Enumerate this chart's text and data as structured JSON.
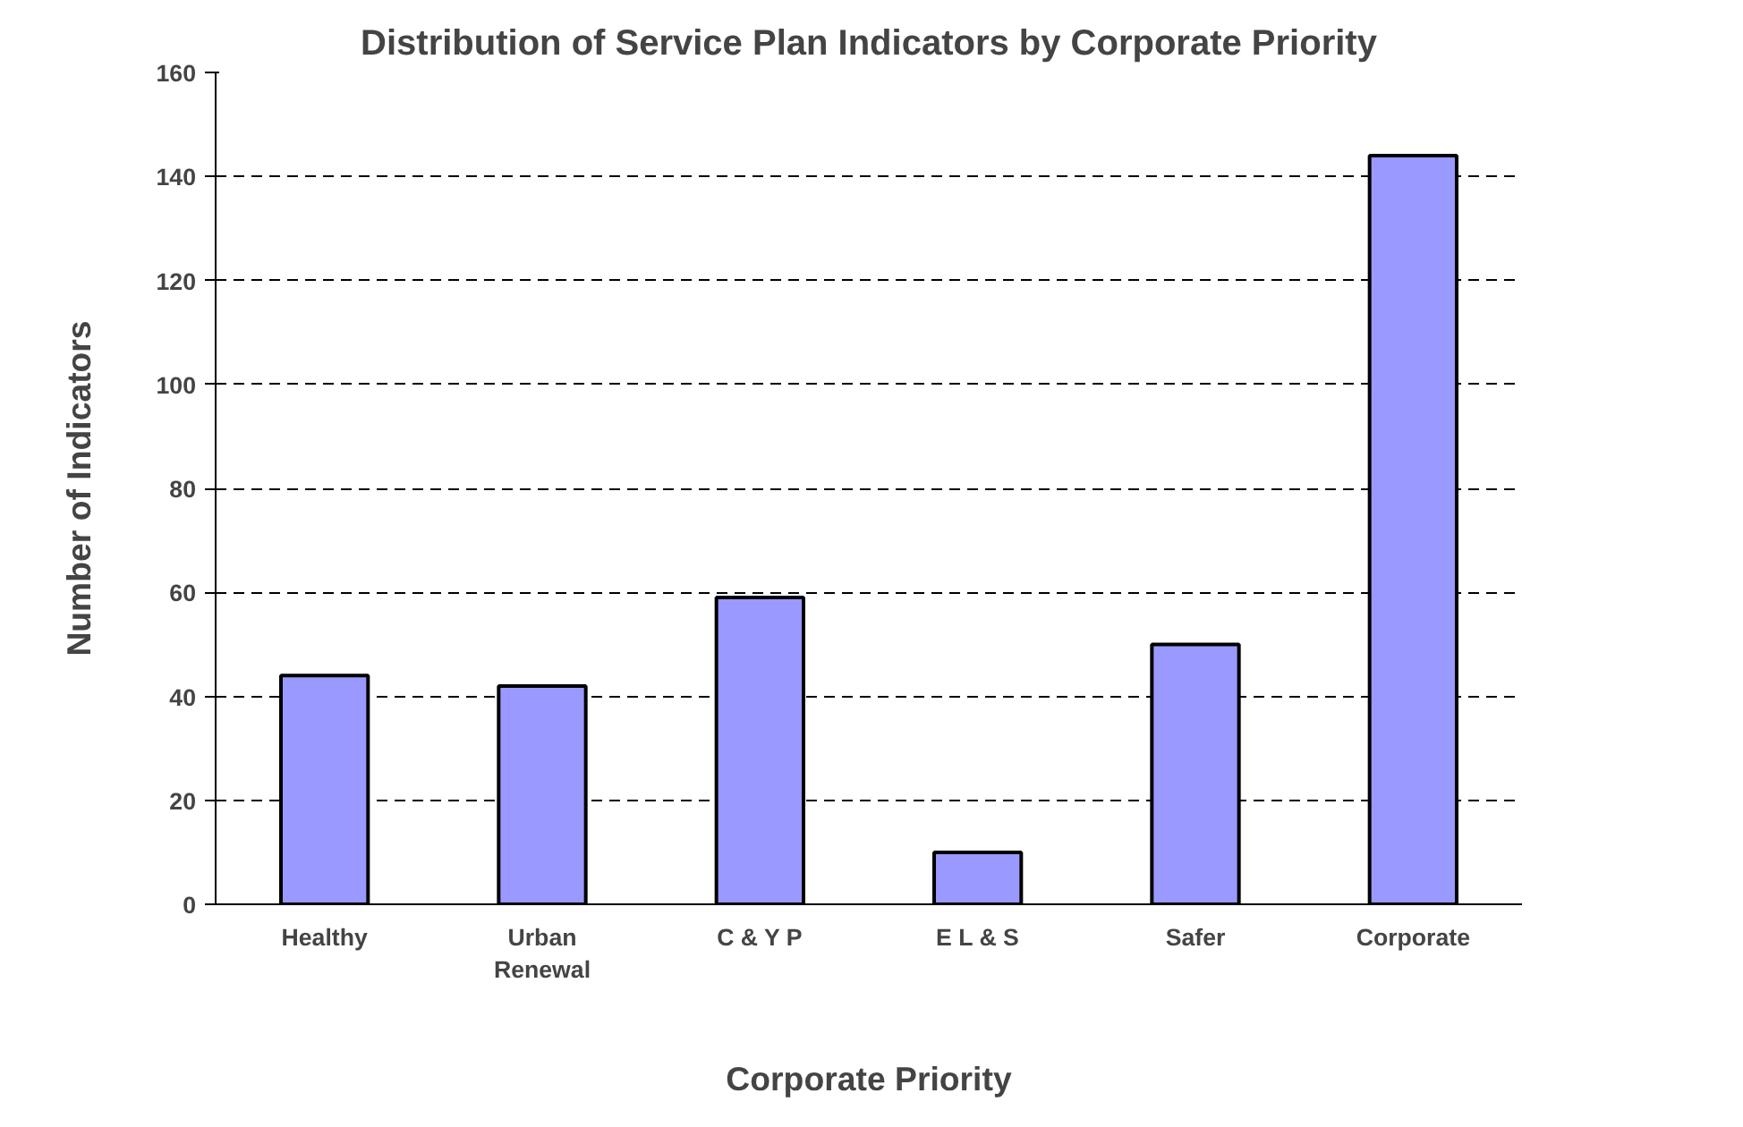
{
  "chart_data": {
    "type": "bar",
    "title": "Distribution of Service Plan Indicators by Corporate Priority",
    "xlabel": "Corporate Priority",
    "ylabel": "Number of Indicators",
    "categories": [
      "Healthy",
      "Urban Renewal",
      "C & Y P",
      "E L & S",
      "Safer",
      "Corporate"
    ],
    "values": [
      44,
      42,
      59,
      10,
      50,
      144
    ],
    "color": "#9999ff",
    "ylim": [
      0,
      160
    ],
    "yticks": [
      0,
      20,
      40,
      60,
      80,
      100,
      120,
      140,
      160
    ],
    "grid": "y"
  }
}
